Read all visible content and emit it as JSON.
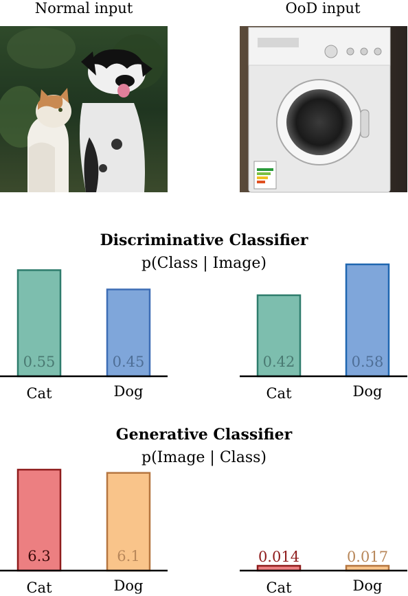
{
  "inputs": {
    "normal_label": "Normal input",
    "ood_label": "OoD input",
    "normal_image_icon": "cat-and-dog-photo",
    "ood_image_icon": "washing-machine-photo"
  },
  "sections": {
    "discriminative": {
      "title": "Discriminative Classifier",
      "subtitle": "p(Class | Image)"
    },
    "generative": {
      "title": "Generative Classifier",
      "subtitle": "p(Image | Class)"
    }
  },
  "colors": {
    "cat_disc_fill": "#7dbeae",
    "cat_disc_stroke": "#2e7c6c",
    "dog_disc_fill": "#7fa6da",
    "dog_disc_stroke": "#3d6db5",
    "dog_disc_stroke_ood": "#1f66b0",
    "cat_gen_fill": "#ec7f81",
    "cat_gen_stroke": "#8f1c1c",
    "dog_gen_fill": "#f9c48a",
    "dog_gen_stroke": "#b57640"
  },
  "chart_data": [
    {
      "type": "bar",
      "panel": "discriminative-normal",
      "categories": [
        "Cat",
        "Dog"
      ],
      "values": [
        0.55,
        0.45
      ],
      "data_labels": [
        "0.55",
        "0.45"
      ],
      "ylim": [
        0,
        0.58
      ]
    },
    {
      "type": "bar",
      "panel": "discriminative-ood",
      "categories": [
        "Cat",
        "Dog"
      ],
      "values": [
        0.42,
        0.58
      ],
      "data_labels": [
        "0.42",
        "0.58"
      ],
      "ylim": [
        0,
        0.58
      ]
    },
    {
      "type": "bar",
      "panel": "generative-normal",
      "categories": [
        "Cat",
        "Dog"
      ],
      "values": [
        6.3,
        6.1
      ],
      "data_labels": [
        "6.3",
        "6.1"
      ],
      "ylim": [
        0,
        6.3
      ]
    },
    {
      "type": "bar",
      "panel": "generative-ood",
      "categories": [
        "Cat",
        "Dog"
      ],
      "values": [
        0.014,
        0.017
      ],
      "data_labels": [
        "0.014",
        "0.017"
      ],
      "ylim": [
        0,
        6.3
      ]
    }
  ]
}
